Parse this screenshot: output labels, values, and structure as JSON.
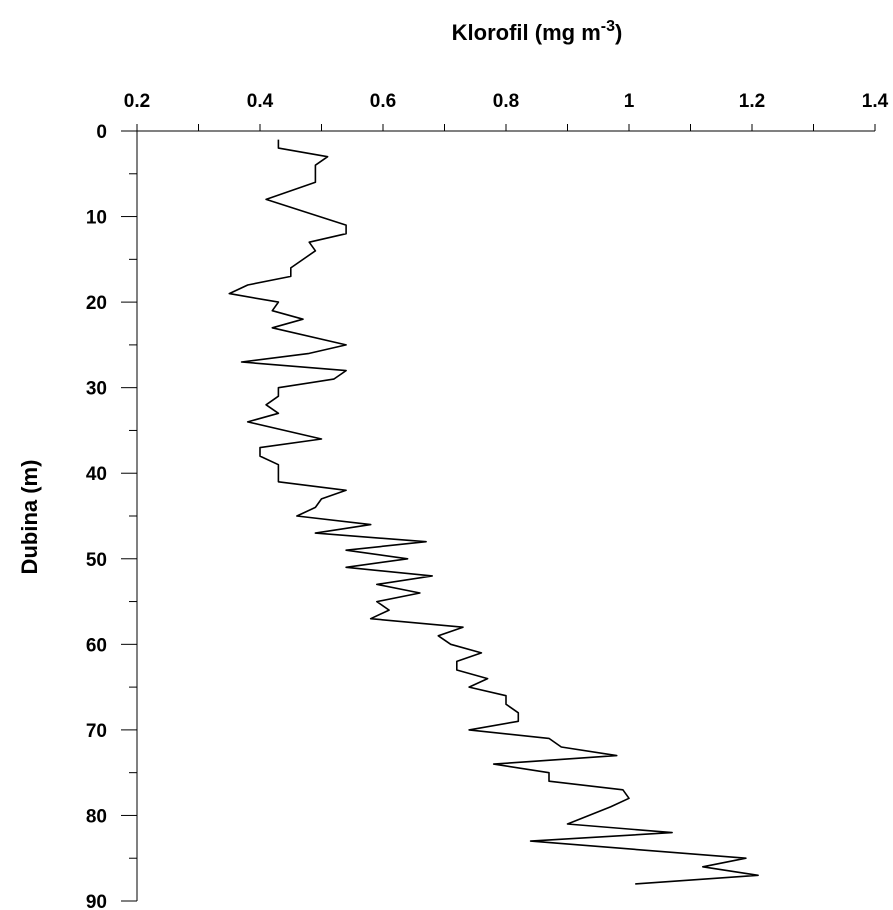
{
  "chart_data": {
    "type": "line",
    "title": "",
    "xlabel": "Klorofil (mg m",
    "xlabel_sup": "-3",
    "xlabel_close": ")",
    "ylabel": "Dubina (m)",
    "xlim": [
      0.2,
      1.4
    ],
    "ylim": [
      0,
      90
    ],
    "y_inverted": true,
    "x_axis_position": "top",
    "grid": false,
    "x_ticks": [
      "0.2",
      "0.4",
      "0.6",
      "0.8",
      "1",
      "1.2",
      "1.4"
    ],
    "y_ticks": [
      "0",
      "10",
      "20",
      "30",
      "40",
      "50",
      "60",
      "70",
      "80",
      "90"
    ],
    "series": [
      {
        "x": [
          0.43,
          0.43,
          0.51,
          0.49,
          0.49,
          0.49,
          0.41,
          0.54,
          0.54,
          0.48,
          0.49,
          0.45,
          0.45,
          0.38,
          0.35,
          0.43,
          0.42,
          0.47,
          0.42,
          0.54,
          0.48,
          0.37,
          0.54,
          0.52,
          0.43,
          0.43,
          0.41,
          0.43,
          0.38,
          0.5,
          0.4,
          0.4,
          0.43,
          0.43,
          0.54,
          0.5,
          0.49,
          0.46,
          0.58,
          0.49,
          0.67,
          0.54,
          0.64,
          0.54,
          0.68,
          0.59,
          0.66,
          0.59,
          0.61,
          0.58,
          0.73,
          0.69,
          0.71,
          0.76,
          0.72,
          0.72,
          0.77,
          0.74,
          0.8,
          0.8,
          0.82,
          0.82,
          0.74,
          0.87,
          0.89,
          0.98,
          0.78,
          0.87,
          0.87,
          0.99,
          1.0,
          0.97,
          0.9,
          1.07,
          0.84,
          1.19,
          1.12,
          1.21,
          1.01
        ],
        "y": [
          1,
          2,
          3,
          4,
          5,
          6,
          8,
          11,
          12,
          13,
          14,
          16,
          17,
          18,
          19,
          20,
          21,
          22,
          23,
          25,
          26,
          27,
          28,
          29,
          30,
          31,
          32,
          33,
          34,
          36,
          37,
          38,
          39,
          41,
          42,
          43,
          44,
          45,
          46,
          47,
          48,
          49,
          50,
          51,
          52,
          53,
          54,
          55,
          56,
          57,
          58,
          59,
          60,
          61,
          62,
          63,
          64,
          65,
          66,
          67,
          68,
          69,
          70,
          71,
          72,
          73,
          74,
          75,
          76,
          77,
          78,
          79,
          81,
          82,
          83,
          85,
          86,
          87,
          88
        ]
      }
    ]
  }
}
